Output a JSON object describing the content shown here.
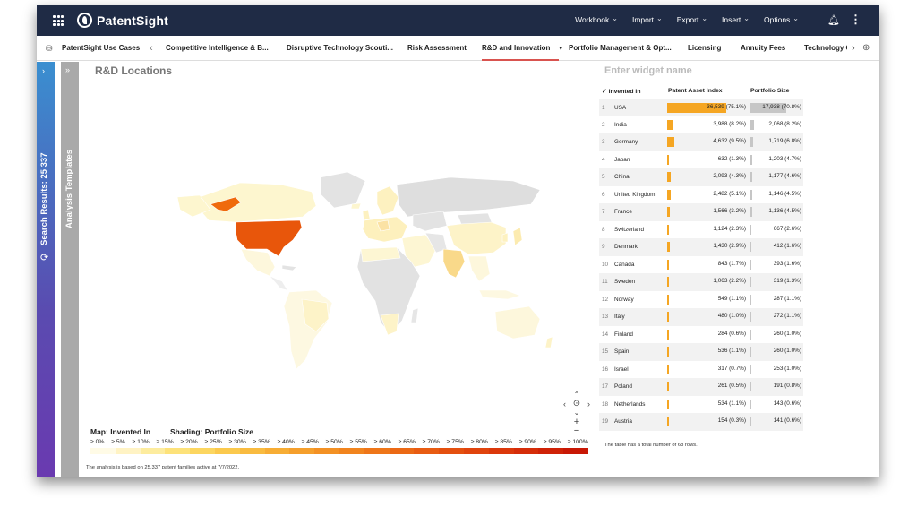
{
  "app": {
    "name": "PatentSight"
  },
  "topmenu": [
    "Workbook",
    "Import",
    "Export",
    "Insert",
    "Options"
  ],
  "tabs": [
    {
      "label": "PatentSight Use Cases"
    },
    {
      "label": "Competitive Intelligence & B..."
    },
    {
      "label": "Disruptive Technology Scouti..."
    },
    {
      "label": "Risk Assessment"
    },
    {
      "label": "R&D and Innovation",
      "active": true
    },
    {
      "label": "Portfolio Management & Opt..."
    },
    {
      "label": "Licensing"
    },
    {
      "label": "Annuity Fees"
    },
    {
      "label": "Technology C"
    }
  ],
  "sidebar": {
    "search_results": "Search Results: 25 337",
    "templates": "Analysis Templates"
  },
  "widget": {
    "title": "R&D Locations",
    "name_placeholder": "Enter widget name"
  },
  "legend": {
    "map_label": "Map: Invented In",
    "shading_label": "Shading: Portfolio Size",
    "steps": [
      "≥ 0%",
      "≥ 5%",
      "≥ 10%",
      "≥ 15%",
      "≥ 20%",
      "≥ 25%",
      "≥ 30%",
      "≥ 35%",
      "≥ 40%",
      "≥ 45%",
      "≥ 50%",
      "≥ 55%",
      "≥ 60%",
      "≥ 65%",
      "≥ 70%",
      "≥ 75%",
      "≥ 80%",
      "≥ 85%",
      "≥ 90%",
      "≥ 95%",
      "≥ 100%"
    ],
    "colors": [
      "#fffbe6",
      "#fff3c4",
      "#fdec9e",
      "#fde27a",
      "#fcd660",
      "#fbc94d",
      "#f9bb40",
      "#f7ad35",
      "#f59f2c",
      "#f39124",
      "#f1841e",
      "#ee7619",
      "#eb6915",
      "#e85c12",
      "#e4500f",
      "#e0440d",
      "#db380b",
      "#d52d09",
      "#cf2207",
      "#c81805"
    ]
  },
  "footnote": "The analysis is based on 25,337 patent families active at 7/7/2022.",
  "table": {
    "headers": [
      "Invented In",
      "Patent Asset Index",
      "Portfolio Size"
    ],
    "rows": [
      {
        "n": "1",
        "country": "USA",
        "pai": "36,539 (75.1%)",
        "pai_pct": 75.1,
        "ps": "17,938 (70.8%)",
        "ps_pct": 70.8
      },
      {
        "n": "2",
        "country": "India",
        "pai": "3,988 (8.2%)",
        "pai_pct": 8.2,
        "ps": "2,068 (8.2%)",
        "ps_pct": 8.2
      },
      {
        "n": "3",
        "country": "Germany",
        "pai": "4,632 (9.5%)",
        "pai_pct": 9.5,
        "ps": "1,719 (6.8%)",
        "ps_pct": 6.8
      },
      {
        "n": "4",
        "country": "Japan",
        "pai": "632 (1.3%)",
        "pai_pct": 1.3,
        "ps": "1,203 (4.7%)",
        "ps_pct": 4.7
      },
      {
        "n": "5",
        "country": "China",
        "pai": "2,093 (4.3%)",
        "pai_pct": 4.3,
        "ps": "1,177 (4.6%)",
        "ps_pct": 4.6
      },
      {
        "n": "6",
        "country": "United Kingdom",
        "pai": "2,482 (5.1%)",
        "pai_pct": 5.1,
        "ps": "1,146 (4.5%)",
        "ps_pct": 4.5
      },
      {
        "n": "7",
        "country": "France",
        "pai": "1,566 (3.2%)",
        "pai_pct": 3.2,
        "ps": "1,136 (4.5%)",
        "ps_pct": 4.5
      },
      {
        "n": "8",
        "country": "Switzerland",
        "pai": "1,124 (2.3%)",
        "pai_pct": 2.3,
        "ps": "667 (2.6%)",
        "ps_pct": 2.6
      },
      {
        "n": "9",
        "country": "Denmark",
        "pai": "1,430 (2.9%)",
        "pai_pct": 2.9,
        "ps": "412 (1.6%)",
        "ps_pct": 1.6
      },
      {
        "n": "10",
        "country": "Canada",
        "pai": "843 (1.7%)",
        "pai_pct": 1.7,
        "ps": "393 (1.6%)",
        "ps_pct": 1.6
      },
      {
        "n": "11",
        "country": "Sweden",
        "pai": "1,063 (2.2%)",
        "pai_pct": 2.2,
        "ps": "319 (1.3%)",
        "ps_pct": 1.3
      },
      {
        "n": "12",
        "country": "Norway",
        "pai": "549 (1.1%)",
        "pai_pct": 1.1,
        "ps": "287 (1.1%)",
        "ps_pct": 1.1
      },
      {
        "n": "13",
        "country": "Italy",
        "pai": "480 (1.0%)",
        "pai_pct": 1.0,
        "ps": "272 (1.1%)",
        "ps_pct": 1.1
      },
      {
        "n": "14",
        "country": "Finland",
        "pai": "284 (0.6%)",
        "pai_pct": 0.6,
        "ps": "260 (1.0%)",
        "ps_pct": 1.0
      },
      {
        "n": "15",
        "country": "Spain",
        "pai": "536 (1.1%)",
        "pai_pct": 1.1,
        "ps": "260 (1.0%)",
        "ps_pct": 1.0
      },
      {
        "n": "16",
        "country": "Israel",
        "pai": "317 (0.7%)",
        "pai_pct": 0.7,
        "ps": "253 (1.0%)",
        "ps_pct": 1.0
      },
      {
        "n": "17",
        "country": "Poland",
        "pai": "261 (0.5%)",
        "pai_pct": 0.5,
        "ps": "191 (0.8%)",
        "ps_pct": 0.8
      },
      {
        "n": "18",
        "country": "Netherlands",
        "pai": "534 (1.1%)",
        "pai_pct": 1.1,
        "ps": "143 (0.6%)",
        "ps_pct": 0.6
      },
      {
        "n": "19",
        "country": "Austria",
        "pai": "154 (0.3%)",
        "pai_pct": 0.3,
        "ps": "141 (0.6%)",
        "ps_pct": 0.6
      }
    ],
    "note": "The table has a total number of 68 rows."
  }
}
